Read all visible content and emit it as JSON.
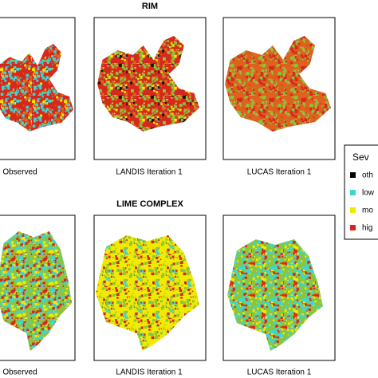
{
  "rim": {
    "title": "RIM",
    "panels": [
      "Observed",
      "LANDIS Iteration 1",
      "LUCAS Iteration 1"
    ]
  },
  "lime_complex": {
    "title": "LIME COMPLEX",
    "panels": [
      "Observed",
      "LANDIS Iteration 1",
      "LUCAS Iteration 1"
    ]
  },
  "legend": {
    "title": "Sev",
    "items": [
      "oth",
      "low",
      "mo",
      "hig"
    ]
  }
}
